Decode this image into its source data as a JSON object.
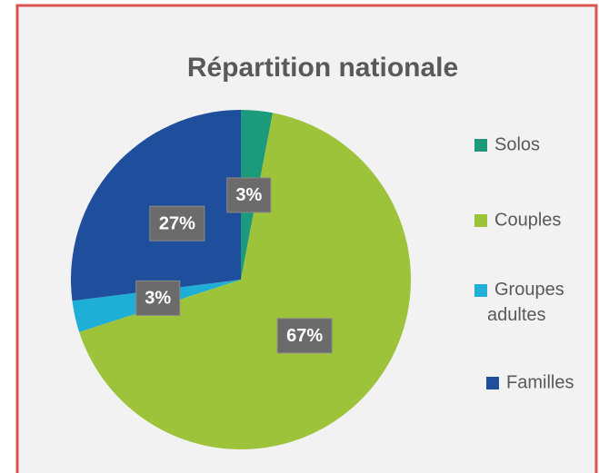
{
  "chart_data": {
    "type": "pie",
    "title": "Répartition nationale",
    "categories": [
      "Solos",
      "Couples",
      "Groupes adultes",
      "Familles"
    ],
    "values": [
      3,
      67,
      3,
      27
    ],
    "value_labels": [
      "3%",
      "67%",
      "3%",
      "27%"
    ],
    "colors": [
      "#1b9a7c",
      "#9dc33b",
      "#1eaed6",
      "#1f4e9c"
    ],
    "legend": "right"
  }
}
